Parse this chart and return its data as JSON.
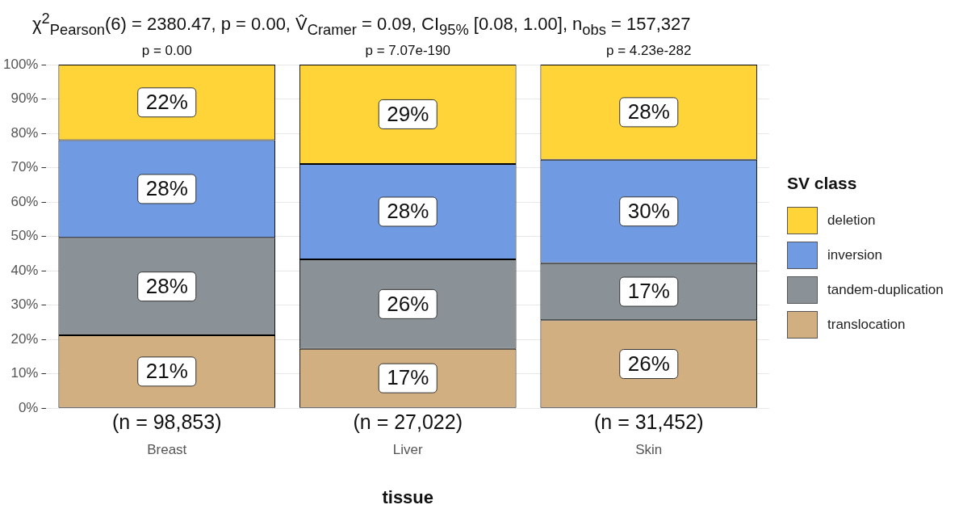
{
  "chart_data": {
    "type": "bar",
    "title": "χ$^{2}$$_{Pearson}$(6) = 2380.47, p = 0.00, V̂$_{Cramer}$ = 0.09, CI$_{95%}$ [0.08, 1.00], n$_{obs}$ = 157,327",
    "xlabel": "tissue",
    "categories": [
      "Breast",
      "Liver",
      "Skin"
    ],
    "stacked": true,
    "series": [
      {
        "name": "translocation",
        "color": "#d2af81",
        "values": [
          21.2,
          17.3,
          25.6
        ],
        "value_labels": [
          "21%",
          "17%",
          "26%"
        ]
      },
      {
        "name": "tandem-duplication",
        "color": "#8a9197",
        "values": [
          28.4,
          26.0,
          16.6
        ],
        "value_labels": [
          "28%",
          "26%",
          "17%"
        ]
      },
      {
        "name": "inversion",
        "color": "#709ae1",
        "values": [
          28.4,
          27.8,
          30.1
        ],
        "value_labels": [
          "28%",
          "28%",
          "30%"
        ]
      },
      {
        "name": "deletion",
        "color": "#fed439",
        "values": [
          22.0,
          28.9,
          27.7
        ],
        "value_labels": [
          "22%",
          "29%",
          "28%"
        ]
      }
    ],
    "ylim": [
      0,
      100
    ],
    "yticks": [
      {
        "value": 0,
        "label": "0%"
      },
      {
        "value": 10,
        "label": "10%"
      },
      {
        "value": 20,
        "label": "20%"
      },
      {
        "value": 30,
        "label": "30%"
      },
      {
        "value": 40,
        "label": "40%"
      },
      {
        "value": 50,
        "label": "50%"
      },
      {
        "value": 60,
        "label": "60%"
      },
      {
        "value": 70,
        "label": "70%"
      },
      {
        "value": 80,
        "label": "80%"
      },
      {
        "value": 90,
        "label": "90%"
      },
      {
        "value": 100,
        "label": "100%"
      }
    ],
    "grid": "y",
    "legend": "right",
    "legend_title": "SV class",
    "annotations": [
      {
        "text": "p = 0.00",
        "x": "Breast",
        "y": 100
      },
      {
        "text": "p = 7.07e-190",
        "x": "Liver",
        "y": 100
      },
      {
        "text": "p = 4.23e-282",
        "x": "Skin",
        "y": 100
      },
      "(n = 98,853)",
      "(n = 27,022)",
      "(n = 31,452)"
    ]
  }
}
